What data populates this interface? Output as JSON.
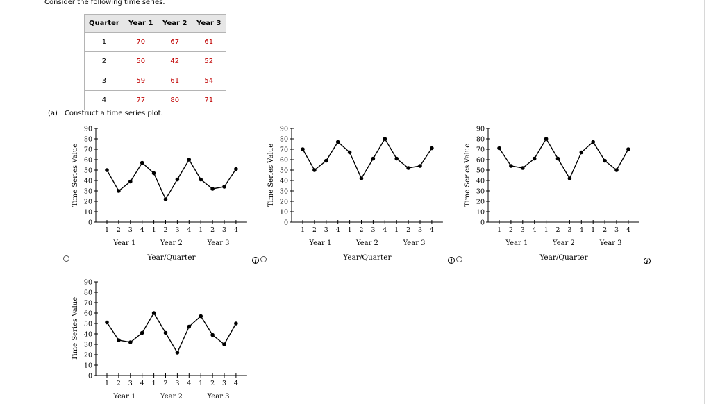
{
  "question": {
    "intro": "Consider the following time series."
  },
  "table": {
    "headers": [
      "Quarter",
      "Year 1",
      "Year 2",
      "Year 3"
    ],
    "rows": [
      [
        "1",
        "70",
        "67",
        "61"
      ],
      [
        "2",
        "50",
        "42",
        "52"
      ],
      [
        "3",
        "59",
        "61",
        "54"
      ],
      [
        "4",
        "77",
        "80",
        "71"
      ]
    ]
  },
  "part_a": {
    "label": "(a)",
    "text": "Construct a time series plot."
  },
  "info_glyph": "i",
  "chart_data": [
    {
      "type": "line",
      "ylabel": "Time Series Value",
      "xlabel": "Year/Quarter",
      "ylim": [
        0,
        90
      ],
      "yticks": [
        "0",
        "10",
        "20",
        "30",
        "40",
        "50",
        "60",
        "70",
        "80",
        "90"
      ],
      "x_tick_labels": [
        "1",
        "2",
        "3",
        "4",
        "1",
        "2",
        "3",
        "4",
        "1",
        "2",
        "3",
        "4"
      ],
      "x_group_labels": [
        "Year 1",
        "Year 2",
        "Year 3"
      ],
      "series": [
        {
          "values": [
            50,
            30,
            39,
            57,
            47,
            22,
            41,
            60,
            41,
            32,
            34,
            51
          ]
        }
      ]
    },
    {
      "type": "line",
      "ylabel": "Time Series Value",
      "xlabel": "Year/Quarter",
      "ylim": [
        0,
        90
      ],
      "yticks": [
        "0",
        "10",
        "20",
        "30",
        "40",
        "50",
        "60",
        "70",
        "80",
        "90"
      ],
      "x_tick_labels": [
        "1",
        "2",
        "3",
        "4",
        "1",
        "2",
        "3",
        "4",
        "1",
        "2",
        "3",
        "4"
      ],
      "x_group_labels": [
        "Year 1",
        "Year 2",
        "Year 3"
      ],
      "series": [
        {
          "values": [
            70,
            50,
            59,
            77,
            67,
            42,
            61,
            80,
            61,
            52,
            54,
            71
          ]
        }
      ]
    },
    {
      "type": "line",
      "ylabel": "Time Series Value",
      "xlabel": "Year/Quarter",
      "ylim": [
        0,
        90
      ],
      "yticks": [
        "0",
        "10",
        "20",
        "30",
        "40",
        "50",
        "60",
        "70",
        "80",
        "90"
      ],
      "x_tick_labels": [
        "1",
        "2",
        "3",
        "4",
        "1",
        "2",
        "3",
        "4",
        "1",
        "2",
        "3",
        "4"
      ],
      "x_group_labels": [
        "Year 1",
        "Year 2",
        "Year 3"
      ],
      "series": [
        {
          "values": [
            71,
            54,
            52,
            61,
            80,
            61,
            42,
            67,
            77,
            59,
            50,
            70
          ]
        }
      ]
    },
    {
      "type": "line",
      "ylabel": "Time Series Value",
      "xlabel": "",
      "ylim": [
        0,
        90
      ],
      "yticks": [
        "0",
        "10",
        "20",
        "30",
        "40",
        "50",
        "60",
        "70",
        "80",
        "90"
      ],
      "x_tick_labels": [
        "1",
        "2",
        "3",
        "4",
        "1",
        "2",
        "3",
        "4",
        "1",
        "2",
        "3",
        "4"
      ],
      "x_group_labels": [
        "Year 1",
        "Year 2",
        "Year 3"
      ],
      "series": [
        {
          "values": [
            51,
            34,
            32,
            41,
            60,
            41,
            22,
            47,
            57,
            39,
            30,
            50
          ]
        }
      ]
    }
  ]
}
